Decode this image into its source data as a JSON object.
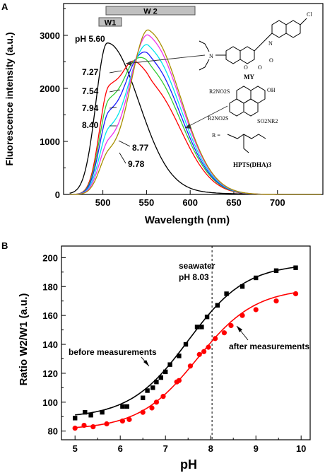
{
  "panel_a": {
    "letter": "A",
    "window_w1": "W1",
    "window_w2": "W 2",
    "ph_labels": [
      "pH 5.60",
      "7.27",
      "7.54",
      "7.94",
      "8.40",
      "8.77",
      "9.78"
    ],
    "molecule_my": {
      "name": "MY",
      "atoms": [
        "N",
        "O",
        "O",
        "N",
        "O",
        "Cl"
      ]
    },
    "molecule_hpts": {
      "name": "HPTS(DHA)3",
      "atoms": [
        "OH",
        "R2NO2S",
        "R2NO2S",
        "SO2NR2",
        "R ="
      ]
    }
  },
  "panel_b": {
    "letter": "B",
    "seawater_label_1": "seawater",
    "seawater_label_2": "pH 8.03",
    "before_label": "before measurements",
    "after_label": "after measurements"
  },
  "chart_data": [
    {
      "type": "line",
      "xlabel": "Wavelength (nm)",
      "ylabel": "Fluorescence intensity (a.u.)",
      "xlim": [
        455,
        752
      ],
      "ylim": [
        0,
        3600
      ],
      "xticks": [
        500,
        550,
        600,
        650,
        700
      ],
      "yticks": [
        0,
        1000,
        2000,
        3000
      ],
      "colors": {
        "5.60": "#000000",
        "7.27": "#ff0000",
        "7.54": "#33cc33",
        "7.94": "#1a1aff",
        "8.40": "#00e5ee",
        "8.77": "#ee33ee",
        "9.78": "#a89000"
      },
      "series": [
        {
          "name": "pH 5.60",
          "color": "#000000",
          "peak1": 2830,
          "peak2": 0,
          "shoulder": 0
        },
        {
          "name": "7.27",
          "color": "#ff0000",
          "peak1": 1950,
          "peak2": 2020,
          "shoulder": 0
        },
        {
          "name": "7.54",
          "color": "#33cc33",
          "peak1": 1690,
          "peak2": 2300,
          "shoulder": 0
        },
        {
          "name": "7.94",
          "color": "#1a1aff",
          "peak1": 1460,
          "peak2": 2480,
          "shoulder": 0
        },
        {
          "name": "8.40",
          "color": "#00e5ee",
          "peak1": 1150,
          "peak2": 2680,
          "shoulder": 0
        },
        {
          "name": "8.77",
          "color": "#ee33ee",
          "peak1": 930,
          "peak2": 2900,
          "shoulder": 0
        },
        {
          "name": "9.78",
          "color": "#a89000",
          "peak1": 730,
          "peak2": 3020,
          "shoulder": 0
        }
      ],
      "windows": [
        {
          "label": "W1",
          "range": [
            490,
            511
          ]
        },
        {
          "label": "W 2",
          "range": [
            503,
            600
          ]
        }
      ]
    },
    {
      "type": "scatter",
      "xlabel": "pH",
      "ylabel": "Ratio W2/W1 (a.u.)",
      "xlim": [
        4.7,
        10.2
      ],
      "ylim": [
        74,
        208
      ],
      "xticks": [
        5,
        6,
        7,
        8,
        9,
        10
      ],
      "yticks": [
        80,
        100,
        120,
        140,
        160,
        180,
        200
      ],
      "reference_line": {
        "x": 8.03,
        "style": "dashed"
      },
      "series": [
        {
          "name": "before measurements",
          "color": "#000000",
          "marker": "square",
          "x": [
            5.0,
            5.22,
            5.35,
            5.6,
            6.05,
            6.15,
            6.5,
            6.6,
            6.72,
            6.8,
            6.9,
            7.0,
            7.1,
            7.3,
            7.45,
            7.7,
            7.8,
            7.92,
            8.15,
            8.35,
            8.7,
            9.0,
            9.45,
            9.88
          ],
          "y": [
            89,
            93,
            91,
            93,
            97,
            97,
            103,
            108,
            110,
            114,
            117,
            121,
            126,
            132,
            140,
            152,
            152,
            159,
            167,
            175,
            180,
            186,
            191,
            193
          ]
        },
        {
          "name": "after measurements",
          "color": "#ff0000",
          "marker": "circle",
          "x": [
            5.0,
            5.2,
            5.4,
            5.7,
            6.05,
            6.2,
            6.5,
            6.7,
            6.8,
            6.95,
            7.25,
            7.3,
            7.55,
            7.75,
            7.85,
            7.95,
            8.1,
            8.3,
            8.45,
            8.7,
            9.0,
            9.45,
            9.88
          ],
          "y": [
            82,
            84,
            83,
            85,
            87,
            88,
            93,
            96,
            100,
            104,
            114,
            115,
            125,
            133,
            135,
            138,
            144,
            148,
            153,
            160,
            164,
            170,
            175
          ]
        }
      ]
    }
  ]
}
